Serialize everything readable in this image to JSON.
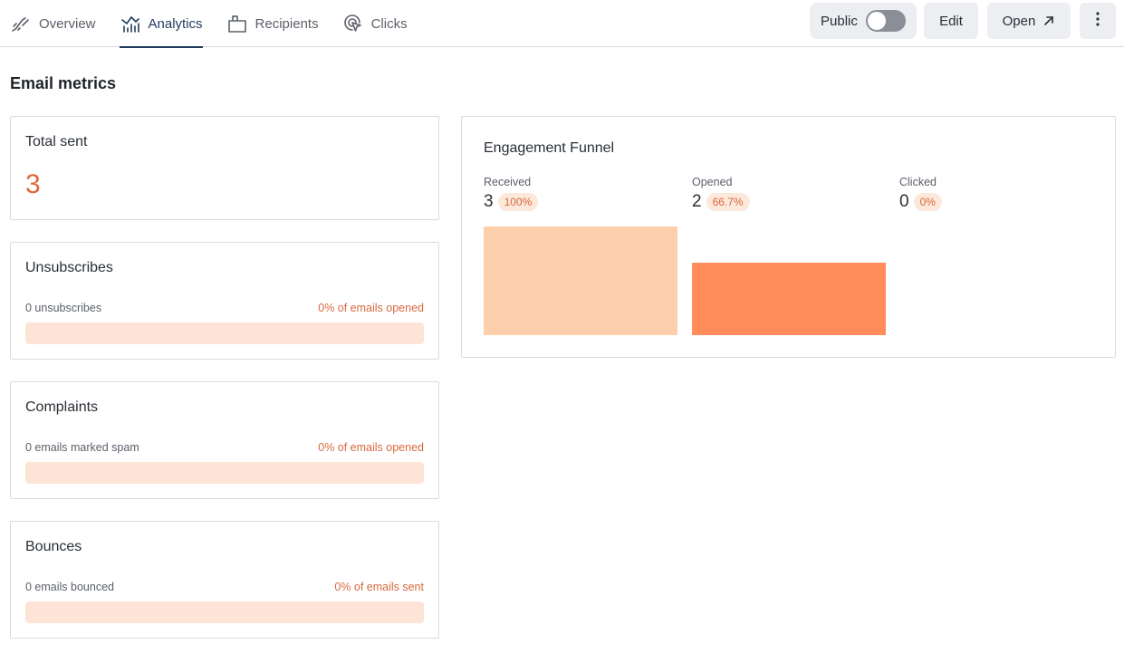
{
  "nav": {
    "tabs": [
      {
        "label": "Overview",
        "icon": "overview-icon",
        "active": false
      },
      {
        "label": "Analytics",
        "icon": "analytics-icon",
        "active": true
      },
      {
        "label": "Recipients",
        "icon": "recipients-icon",
        "active": false
      },
      {
        "label": "Clicks",
        "icon": "clicks-icon",
        "active": false
      }
    ],
    "public_label": "Public",
    "public_enabled": false,
    "edit_label": "Edit",
    "open_label": "Open",
    "more_icon": "more-vertical-icon"
  },
  "section_title": "Email metrics",
  "total_sent": {
    "title": "Total sent",
    "value": "3"
  },
  "unsubscribes": {
    "title": "Unsubscribes",
    "count_text": "0 unsubscribes",
    "pct_text": "0% of emails opened",
    "fraction": 0
  },
  "complaints": {
    "title": "Complaints",
    "count_text": "0 emails marked spam",
    "pct_text": "0% of emails opened",
    "fraction": 0
  },
  "bounces": {
    "title": "Bounces",
    "count_text": "0 emails bounced",
    "pct_text": "0% of emails sent",
    "fraction": 0
  },
  "funnel": {
    "title": "Engagement Funnel",
    "stages": [
      {
        "label": "Received",
        "value": "3",
        "pct": "100%",
        "fraction": 1.0,
        "color": "#fdcfac"
      },
      {
        "label": "Opened",
        "value": "2",
        "pct": "66.7%",
        "fraction": 0.667,
        "color": "#ff8c5a"
      },
      {
        "label": "Clicked",
        "value": "0",
        "pct": "0%",
        "fraction": 0,
        "color": "#ff8c5a"
      }
    ]
  },
  "colors": {
    "accent": "#e1683a",
    "bar_bg": "#fde4d6",
    "nav_active": "#1f3a5c"
  }
}
